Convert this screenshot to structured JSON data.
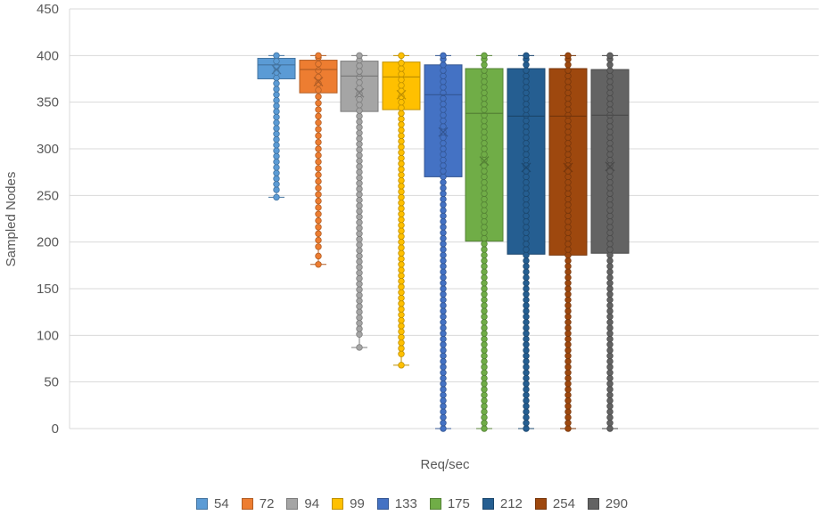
{
  "chart_data": {
    "type": "box",
    "title": "",
    "xlabel": "Req/sec",
    "ylabel": "Sampled Nodes",
    "ylim": [
      0,
      450
    ],
    "yticks": [
      0,
      50,
      100,
      150,
      200,
      250,
      300,
      350,
      400,
      450
    ],
    "grid": "horizontal",
    "legend_position": "bottom",
    "series": [
      {
        "name": "54",
        "color": "#5B9BD5",
        "min": 248,
        "q1": 375,
        "median": 390,
        "q3": 397,
        "max": 400,
        "mean": 385,
        "points": [
          248,
          256,
          262,
          268,
          274,
          280,
          286,
          292,
          298,
          304,
          310,
          316,
          322,
          328,
          334,
          340,
          346,
          352,
          358,
          364,
          370,
          376,
          382,
          388,
          394,
          400
        ]
      },
      {
        "name": "72",
        "color": "#ED7D31",
        "min": 176,
        "q1": 360,
        "median": 385,
        "q3": 395,
        "max": 400,
        "mean": 372,
        "points": [
          176,
          185,
          195,
          202,
          209,
          216,
          223,
          230,
          237,
          244,
          251,
          258,
          265,
          272,
          279,
          286,
          293,
          300,
          307,
          314,
          321,
          328,
          335,
          342,
          349,
          356,
          363,
          370,
          377,
          384,
          391,
          398,
          400
        ]
      },
      {
        "name": "94",
        "color": "#A5A5A5",
        "min": 87,
        "q1": 340,
        "median": 378,
        "q3": 394,
        "max": 400,
        "mean": 360,
        "points": [
          87,
          101,
          107,
          113,
          119,
          125,
          131,
          137,
          143,
          149,
          155,
          161,
          167,
          173,
          179,
          185,
          191,
          197,
          203,
          209,
          215,
          221,
          227,
          233,
          239,
          245,
          251,
          257,
          263,
          269,
          275,
          281,
          287,
          293,
          299,
          305,
          311,
          317,
          323,
          329,
          335,
          341,
          347,
          353,
          359,
          365,
          371,
          377,
          383,
          389,
          395,
          400
        ]
      },
      {
        "name": "99",
        "color": "#FFC000",
        "min": 68,
        "q1": 342,
        "median": 377,
        "q3": 393,
        "max": 400,
        "mean": 358,
        "points": [
          68,
          80,
          86,
          92,
          98,
          104,
          110,
          116,
          122,
          128,
          134,
          140,
          146,
          152,
          158,
          164,
          170,
          176,
          182,
          188,
          194,
          200,
          206,
          212,
          218,
          224,
          230,
          236,
          242,
          248,
          254,
          260,
          266,
          272,
          278,
          284,
          290,
          296,
          302,
          308,
          314,
          320,
          326,
          332,
          338,
          344,
          350,
          356,
          362,
          368,
          374,
          380,
          386,
          392,
          400
        ]
      },
      {
        "name": "133",
        "color": "#4472C4",
        "min": 0,
        "q1": 270,
        "median": 358,
        "q3": 390,
        "max": 400,
        "mean": 318,
        "points": [
          0,
          6,
          12,
          18,
          24,
          30,
          36,
          42,
          48,
          54,
          60,
          66,
          72,
          78,
          84,
          90,
          96,
          102,
          108,
          114,
          120,
          126,
          132,
          138,
          144,
          150,
          156,
          162,
          168,
          174,
          180,
          186,
          192,
          198,
          204,
          210,
          216,
          222,
          228,
          234,
          240,
          246,
          252,
          258,
          264,
          270,
          276,
          282,
          288,
          294,
          300,
          306,
          312,
          318,
          324,
          330,
          336,
          342,
          348,
          354,
          360,
          366,
          372,
          378,
          384,
          390,
          396,
          400
        ]
      },
      {
        "name": "175",
        "color": "#70AD47",
        "min": 0,
        "q1": 201,
        "median": 338,
        "q3": 386,
        "max": 400,
        "mean": 287,
        "points": [
          0,
          6,
          12,
          18,
          24,
          30,
          36,
          42,
          48,
          54,
          60,
          66,
          72,
          78,
          84,
          90,
          96,
          102,
          108,
          114,
          120,
          126,
          132,
          138,
          144,
          150,
          156,
          162,
          168,
          174,
          180,
          186,
          192,
          198,
          204,
          210,
          216,
          222,
          228,
          234,
          240,
          246,
          252,
          258,
          264,
          270,
          276,
          282,
          288,
          294,
          300,
          306,
          312,
          318,
          324,
          330,
          336,
          342,
          348,
          354,
          360,
          366,
          372,
          378,
          384,
          390,
          396,
          400
        ]
      },
      {
        "name": "212",
        "color": "#255E91",
        "min": 0,
        "q1": 187,
        "median": 335,
        "q3": 386,
        "max": 400,
        "mean": 280,
        "points": [
          0,
          6,
          12,
          18,
          24,
          30,
          36,
          42,
          48,
          54,
          60,
          66,
          72,
          78,
          84,
          90,
          96,
          102,
          108,
          114,
          120,
          126,
          132,
          138,
          144,
          150,
          156,
          162,
          168,
          174,
          180,
          186,
          192,
          198,
          204,
          210,
          216,
          222,
          228,
          234,
          240,
          246,
          252,
          258,
          264,
          270,
          276,
          282,
          288,
          294,
          300,
          306,
          312,
          318,
          324,
          330,
          336,
          342,
          348,
          354,
          360,
          366,
          372,
          378,
          384,
          390,
          396,
          400
        ]
      },
      {
        "name": "254",
        "color": "#9E480E",
        "min": 0,
        "q1": 186,
        "median": 335,
        "q3": 386,
        "max": 400,
        "mean": 280,
        "points": [
          0,
          6,
          12,
          18,
          24,
          30,
          36,
          42,
          48,
          54,
          60,
          66,
          72,
          78,
          84,
          90,
          96,
          102,
          108,
          114,
          120,
          126,
          132,
          138,
          144,
          150,
          156,
          162,
          168,
          174,
          180,
          186,
          192,
          198,
          204,
          210,
          216,
          222,
          228,
          234,
          240,
          246,
          252,
          258,
          264,
          270,
          276,
          282,
          288,
          294,
          300,
          306,
          312,
          318,
          324,
          330,
          336,
          342,
          348,
          354,
          360,
          366,
          372,
          378,
          384,
          390,
          396,
          400
        ]
      },
      {
        "name": "290",
        "color": "#636363",
        "min": 0,
        "q1": 188,
        "median": 336,
        "q3": 385,
        "max": 400,
        "mean": 281,
        "points": [
          0,
          6,
          12,
          18,
          24,
          30,
          36,
          42,
          48,
          54,
          60,
          66,
          72,
          78,
          84,
          90,
          96,
          102,
          108,
          114,
          120,
          126,
          132,
          138,
          144,
          150,
          156,
          162,
          168,
          174,
          180,
          186,
          192,
          198,
          204,
          210,
          216,
          222,
          228,
          234,
          240,
          246,
          252,
          258,
          264,
          270,
          276,
          282,
          288,
          294,
          300,
          306,
          312,
          318,
          324,
          330,
          336,
          342,
          348,
          354,
          360,
          366,
          372,
          378,
          384,
          390,
          396,
          400
        ]
      }
    ]
  }
}
